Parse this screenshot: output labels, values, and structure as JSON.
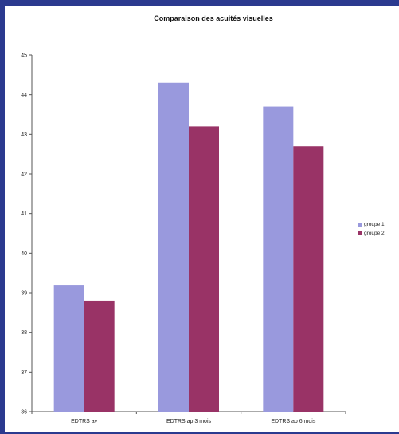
{
  "chart_data": {
    "type": "bar",
    "title": "Comparaison des acuités visuelles",
    "categories": [
      "EDTRS av",
      "EDTRS ap 3 mois",
      "EDTRS ap 6 mois"
    ],
    "series": [
      {
        "name": "groupe 1",
        "color": "#9999dd",
        "values": [
          39.2,
          44.3,
          43.7
        ]
      },
      {
        "name": "groupe 2",
        "color": "#993366",
        "values": [
          38.8,
          43.2,
          42.7
        ]
      }
    ],
    "ylim": [
      36,
      45
    ],
    "yticks": [
      36,
      37,
      38,
      39,
      40,
      41,
      42,
      43,
      44,
      45
    ],
    "grid": false,
    "legend": "right"
  }
}
